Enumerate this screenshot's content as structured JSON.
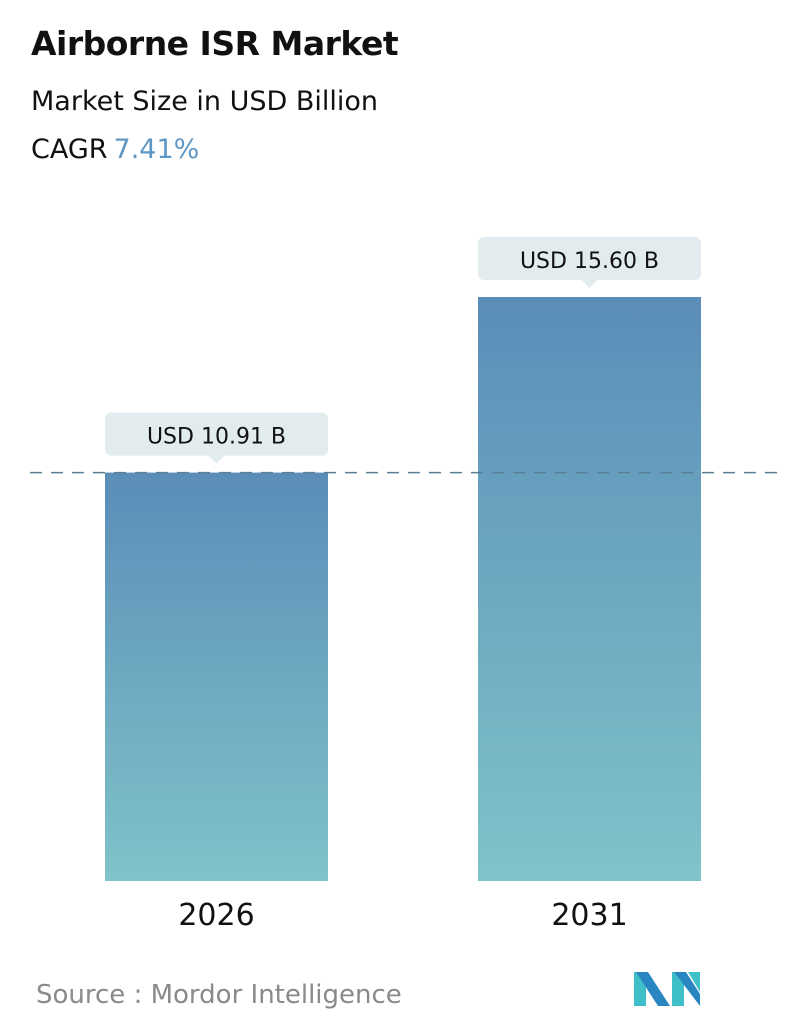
{
  "header": {
    "title": "Airborne ISR Market",
    "subtitle": "Market Size in USD Billion",
    "cagr_label": "CAGR",
    "cagr_value": "7.41%"
  },
  "chart_data": {
    "type": "bar",
    "categories": [
      "2026",
      "2031"
    ],
    "values": [
      10.91,
      15.6
    ],
    "data_labels": [
      "USD 10.91 B",
      "USD 15.60 B"
    ],
    "ylim": [
      0,
      15.6
    ],
    "grid": false,
    "reference_line": {
      "value": 10.91,
      "style": "dashed"
    },
    "colors": {
      "bar_top": "#5b8db8",
      "bar_bottom": "#80c3c9",
      "label_bg": "#e2ebee",
      "ref_line": "#5a8098",
      "cagr": "#5f97c4"
    }
  },
  "footer": {
    "source": "Source :  Mordor Intelligence",
    "logo": "Mordor Intelligence"
  }
}
